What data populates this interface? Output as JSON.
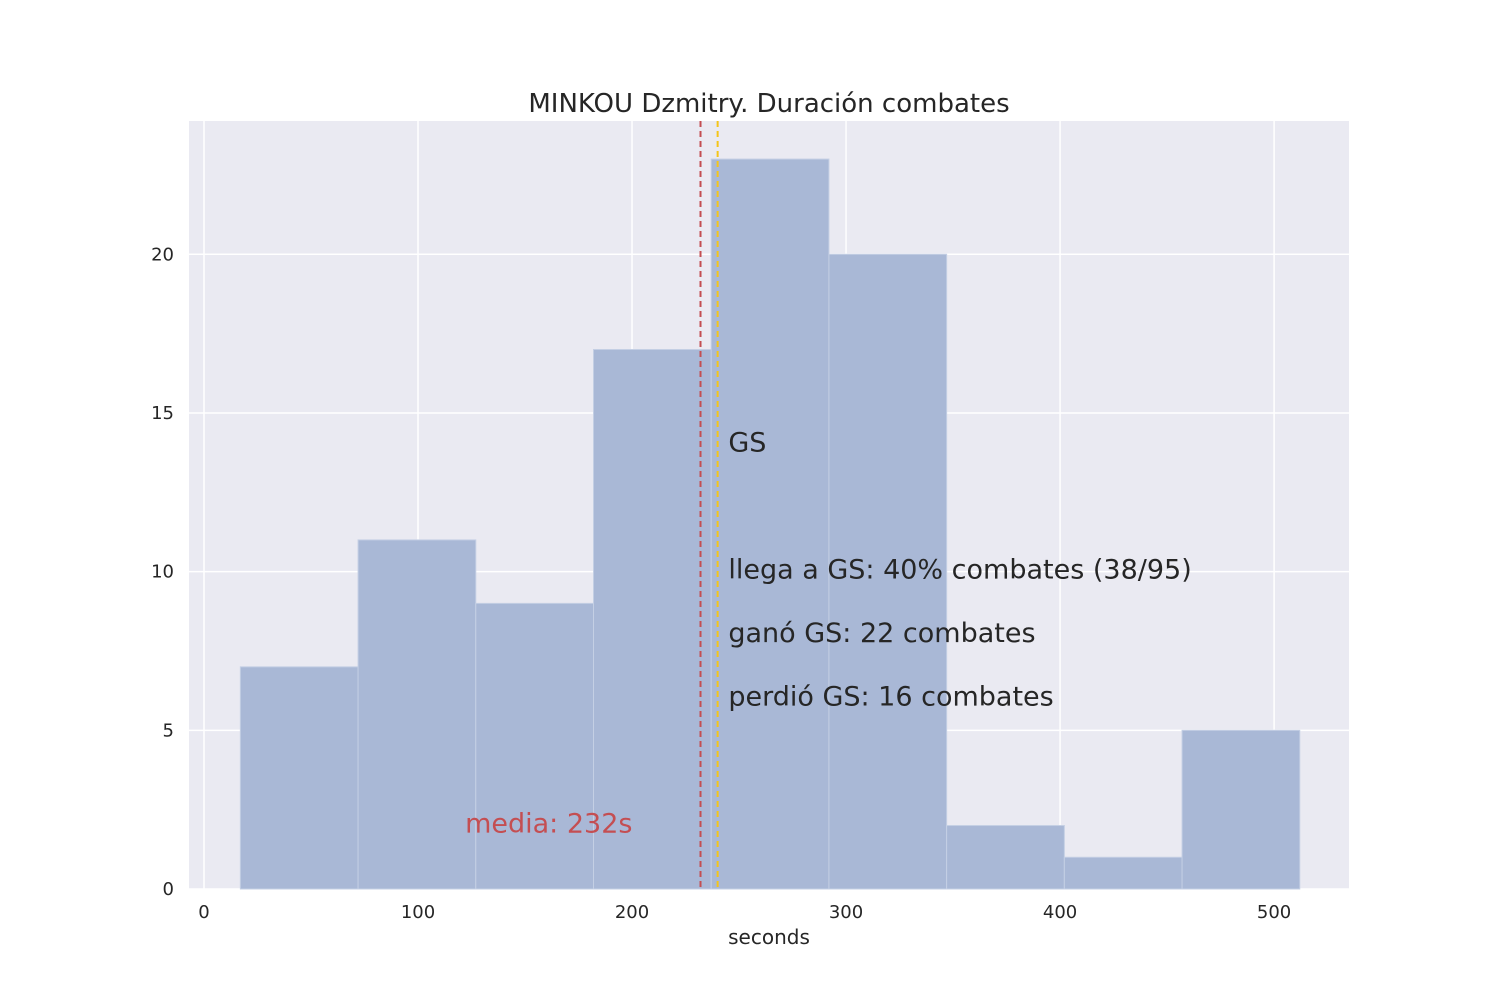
{
  "chart_data": {
    "type": "bar",
    "title": "MINKOU Dzmitry. Duración combates",
    "xlabel": "seconds",
    "ylabel": "",
    "xlim": [
      -7,
      535
    ],
    "ylim": [
      0,
      24.2
    ],
    "xticks": [
      0,
      100,
      200,
      300,
      400,
      500
    ],
    "yticks": [
      0,
      5,
      10,
      15,
      20
    ],
    "grid": true,
    "bins": [
      {
        "x0": 17,
        "x1": 72,
        "count": 7
      },
      {
        "x0": 72,
        "x1": 127,
        "count": 11
      },
      {
        "x0": 127,
        "x1": 182,
        "count": 9
      },
      {
        "x0": 182,
        "x1": 237,
        "count": 17
      },
      {
        "x0": 237,
        "x1": 292,
        "count": 23
      },
      {
        "x0": 292,
        "x1": 347,
        "count": 20
      },
      {
        "x0": 347,
        "x1": 402,
        "count": 2
      },
      {
        "x0": 402,
        "x1": 457,
        "count": 1
      },
      {
        "x0": 457,
        "x1": 512,
        "count": 5
      }
    ],
    "bar_color": "#a9b8d6",
    "mean_line": {
      "x": 232,
      "color": "#c44e52"
    },
    "gs_line": {
      "x": 240,
      "color": "#f5c518"
    },
    "annotations": {
      "mean": {
        "text": "media: 232s",
        "x": 122,
        "y": 2.1
      },
      "gs": {
        "text": "GS",
        "x": 245,
        "y": 14.1
      },
      "llega": {
        "text": "llega a GS: 40% combates (38/95)",
        "x": 245,
        "y": 10.1
      },
      "gano": {
        "text": "ganó GS: 22 combates",
        "x": 245,
        "y": 8.1
      },
      "perdio": {
        "text": "perdió GS: 16 combates",
        "x": 245,
        "y": 6.1
      }
    }
  }
}
